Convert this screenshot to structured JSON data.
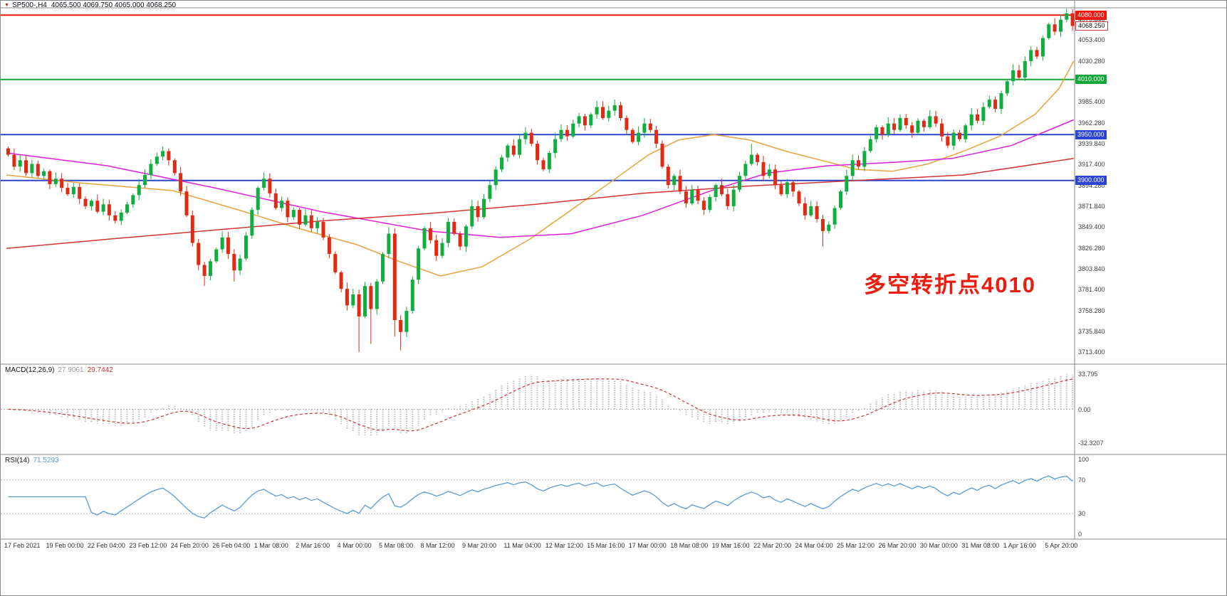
{
  "window_header": {
    "symbol_period": "SP500-,H4",
    "ohlc_values": "4065.500 4069.750 4065.000 4068.250"
  },
  "main_chart": {
    "annotation": "多空转折点4010"
  },
  "macd_panel": {
    "label": "MACD(12,26,9)",
    "value_main": "27.9061",
    "value_signal": "29.7442",
    "axis": [
      {
        "value": 33.795,
        "label": "33.795"
      },
      {
        "value": 0,
        "label": "0.00"
      },
      {
        "value": -32.3207,
        "label": "-32.3207"
      }
    ]
  },
  "rsi_panel": {
    "label": "RSI(14)",
    "value": "71.5293",
    "levels": [
      70,
      30
    ],
    "axis": [
      {
        "value": 100,
        "label": "100"
      },
      {
        "value": 70,
        "label": "70"
      },
      {
        "value": 30,
        "label": "30"
      },
      {
        "value": 0,
        "label": "0"
      }
    ]
  },
  "time_axis": {
    "step": 7,
    "labels": [
      "17 Feb 2021",
      "19 Feb 00:00",
      "22 Feb 04:00",
      "23 Feb 12:00",
      "24 Feb 20:00",
      "26 Feb 04:00",
      "1 Mar 08:00",
      "2 Mar 16:00",
      "4 Mar 00:00",
      "5 Mar 08:00",
      "8 Mar 12:00",
      "9 Mar 20:00",
      "11 Mar 04:00",
      "12 Mar 12:00",
      "15 Mar 16:00",
      "17 Mar 00:00",
      "18 Mar 08:00",
      "19 Mar 16:00",
      "22 Mar 20:00",
      "24 Mar 04:00",
      "25 Mar 12:00",
      "26 Mar 20:00",
      "30 Mar 00:00",
      "31 Mar 08:00",
      "1 Apr 16:00",
      "5 Apr 20:00"
    ]
  },
  "chart_data": {
    "type": "candlestick",
    "symbol": "SP500-",
    "timeframe": "H4",
    "price_range": [
      3700,
      4088
    ],
    "open_first": 3935,
    "last_price": 4068.25,
    "closes": [
      3928,
      3915,
      3922,
      3908,
      3918,
      3905,
      3910,
      3896,
      3902,
      3892,
      3885,
      3893,
      3880,
      3872,
      3878,
      3866,
      3874,
      3862,
      3856,
      3865,
      3874,
      3884,
      3895,
      3906,
      3918,
      3926,
      3932,
      3922,
      3908,
      3888,
      3862,
      3832,
      3808,
      3796,
      3812,
      3825,
      3838,
      3820,
      3802,
      3815,
      3840,
      3868,
      3892,
      3902,
      3886,
      3870,
      3878,
      3860,
      3868,
      3852,
      3862,
      3848,
      3855,
      3838,
      3820,
      3800,
      3782,
      3764,
      3776,
      3752,
      3785,
      3760,
      3790,
      3820,
      3842,
      3748,
      3735,
      3758,
      3792,
      3826,
      3848,
      3835,
      3818,
      3832,
      3855,
      3842,
      3828,
      3850,
      3872,
      3860,
      3880,
      3895,
      3912,
      3925,
      3938,
      3928,
      3945,
      3952,
      3940,
      3922,
      3912,
      3930,
      3945,
      3955,
      3948,
      3962,
      3970,
      3960,
      3972,
      3980,
      3968,
      3976,
      3982,
      3968,
      3955,
      3942,
      3952,
      3962,
      3955,
      3940,
      3915,
      3895,
      3905,
      3888,
      3875,
      3890,
      3878,
      3868,
      3882,
      3895,
      3885,
      3872,
      3890,
      3905,
      3918,
      3928,
      3920,
      3905,
      3912,
      3895,
      3885,
      3898,
      3888,
      3875,
      3862,
      3872,
      3858,
      3845,
      3852,
      3870,
      3888,
      3905,
      3922,
      3915,
      3932,
      3945,
      3958,
      3950,
      3962,
      3955,
      3968,
      3960,
      3952,
      3965,
      3958,
      3970,
      3962,
      3948,
      3938,
      3952,
      3945,
      3960,
      3972,
      3965,
      3980,
      3988,
      3978,
      3995,
      4008,
      4020,
      4012,
      4030,
      4042,
      4035,
      4055,
      4070,
      4062,
      4075,
      4082,
      4068.25
    ],
    "wick_low_overrides": {
      "33": 3785,
      "38": 3790,
      "59": 3713,
      "61": 3722,
      "65": 3730,
      "66": 3715,
      "137": 3828
    },
    "wick_high_overrides": {
      "26": 3937,
      "87": 3958,
      "102": 3988,
      "125": 3940,
      "150": 3972,
      "178": 4087
    },
    "horizontal_lines": [
      {
        "price": 4080,
        "color": "#ee1509",
        "label": "4080.000",
        "label_style": "red"
      },
      {
        "price": 4010,
        "color": "#12a637",
        "label": "4010.000",
        "label_style": "green"
      },
      {
        "price": 3950,
        "color": "#2c44cf",
        "label": "3950.000",
        "label_style": "blue"
      },
      {
        "price": 3900,
        "color": "#2c44cf",
        "label": "3900.000",
        "label_style": "blue"
      }
    ],
    "current_price_tag": {
      "price": 4068.25,
      "label": "4068.250"
    },
    "moving_averages": [
      {
        "name": "ma-fast-orange",
        "color": "#e8a33d",
        "points": [
          [
            0,
            3906
          ],
          [
            13,
            3897
          ],
          [
            28,
            3889
          ],
          [
            39,
            3868
          ],
          [
            49,
            3848
          ],
          [
            59,
            3830
          ],
          [
            66,
            3812
          ],
          [
            73,
            3796
          ],
          [
            80,
            3806
          ],
          [
            88,
            3836
          ],
          [
            95,
            3868
          ],
          [
            102,
            3900
          ],
          [
            108,
            3928
          ],
          [
            113,
            3944
          ],
          [
            119,
            3950
          ],
          [
            125,
            3944
          ],
          [
            131,
            3932
          ],
          [
            137,
            3922
          ],
          [
            143,
            3912
          ],
          [
            149,
            3910
          ],
          [
            155,
            3918
          ],
          [
            161,
            3932
          ],
          [
            167,
            3948
          ],
          [
            173,
            3972
          ],
          [
            177,
            4000
          ],
          [
            180,
            4030
          ]
        ]
      },
      {
        "name": "ma-mid-magenta",
        "color": "#df1fdf",
        "points": [
          [
            0,
            3930
          ],
          [
            17,
            3916
          ],
          [
            35,
            3892
          ],
          [
            53,
            3866
          ],
          [
            71,
            3845
          ],
          [
            83,
            3838
          ],
          [
            95,
            3842
          ],
          [
            107,
            3862
          ],
          [
            119,
            3890
          ],
          [
            128,
            3908
          ],
          [
            138,
            3916
          ],
          [
            150,
            3920
          ],
          [
            159,
            3924
          ],
          [
            169,
            3938
          ],
          [
            180,
            3966
          ]
        ]
      },
      {
        "name": "ma-slow-red",
        "color": "#d23333",
        "points": [
          [
            0,
            3826
          ],
          [
            17,
            3836
          ],
          [
            35,
            3846
          ],
          [
            53,
            3856
          ],
          [
            71,
            3864
          ],
          [
            89,
            3874
          ],
          [
            107,
            3886
          ],
          [
            125,
            3894
          ],
          [
            143,
            3900
          ],
          [
            161,
            3906
          ],
          [
            180,
            3924
          ]
        ]
      }
    ],
    "y_ticks": [
      {
        "price": 4075.84,
        "label": "4075.840"
      },
      {
        "price": 4053.4,
        "label": "4053.400"
      },
      {
        "price": 4030.28,
        "label": "4030.280"
      },
      {
        "price": 3985.4,
        "label": "3985.400"
      },
      {
        "price": 3962.28,
        "label": "3962.280"
      },
      {
        "price": 3939.84,
        "label": "3939.840"
      },
      {
        "price": 3917.4,
        "label": "3917.400"
      },
      {
        "price": 3894.28,
        "label": "3894.280"
      },
      {
        "price": 3871.84,
        "label": "3871.840"
      },
      {
        "price": 3849.4,
        "label": "3849.400"
      },
      {
        "price": 3826.28,
        "label": "3826.280"
      },
      {
        "price": 3803.84,
        "label": "3803.840"
      },
      {
        "price": 3781.4,
        "label": "3781.400"
      },
      {
        "price": 3758.28,
        "label": "3758.280"
      },
      {
        "price": 3735.84,
        "label": "3735.840"
      },
      {
        "price": 3713.4,
        "label": "3713.400"
      }
    ],
    "colors": {
      "up": "#0fae3e",
      "down": "#e02a14",
      "macd_hist": "#bdbdbd",
      "macd_signal": "#d23333",
      "rsi": "#5b9bd5"
    }
  }
}
